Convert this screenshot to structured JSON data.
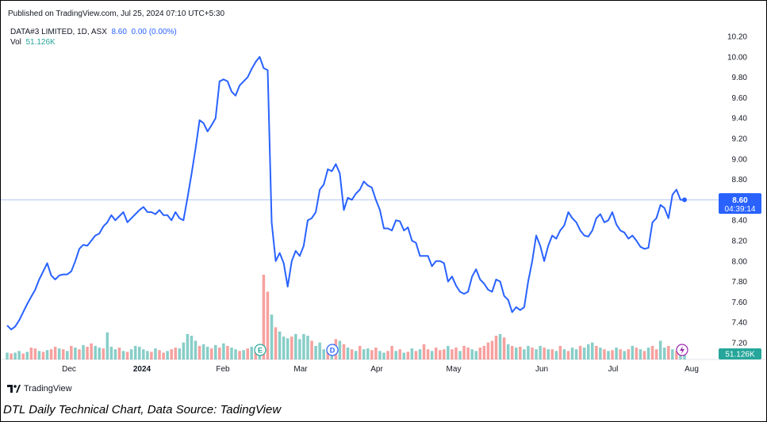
{
  "header": {
    "published": "Published on TradingView.com, Jul 25, 2024 07:10 UTC+5:30"
  },
  "legend": {
    "symbol": "DATA#3 LIMITED, 1D, ASX",
    "price": "8.60",
    "change": "0.00 (0.00%)",
    "vol_label": "Vol",
    "vol_value": "51.126K"
  },
  "price_label": {
    "price": "8.60",
    "countdown": "04:39:14"
  },
  "volume_label": "51.126K",
  "branding": "TradingView",
  "caption": "DTL Daily Technical Chart, Data Source: TadingView",
  "markers": {
    "earnings": "E",
    "dividend": "D"
  },
  "colors": {
    "line": "#2962ff",
    "vol_up": "#26a69a",
    "vol_down": "#ef5350",
    "price_line": "#b2c5f5"
  },
  "chart_data": {
    "type": "line",
    "series": [
      {
        "values": [
          7.37,
          7.33,
          7.36,
          7.42,
          7.5,
          7.58,
          7.65,
          7.72,
          7.82,
          7.9,
          7.98,
          7.86,
          7.82,
          7.86,
          7.87,
          7.87,
          7.9,
          8.0,
          8.12,
          8.16,
          8.15,
          8.2,
          8.25,
          8.27,
          8.34,
          8.38,
          8.45,
          8.4,
          8.44,
          8.48,
          8.38,
          8.42,
          8.46,
          8.5,
          8.53,
          8.48,
          8.48,
          8.46,
          8.5,
          8.45,
          8.45,
          8.4,
          8.48,
          8.42,
          8.4,
          8.62,
          8.85,
          9.1,
          9.38,
          9.35,
          9.27,
          9.33,
          9.4,
          9.76,
          9.78,
          9.76,
          9.66,
          9.62,
          9.72,
          9.76,
          9.8,
          9.88,
          9.95,
          10.0,
          9.89,
          9.87,
          8.38,
          8.0,
          8.08,
          7.98,
          7.75,
          8.0,
          8.1,
          8.05,
          8.15,
          8.4,
          8.42,
          8.48,
          8.7,
          8.75,
          8.9,
          8.88,
          8.95,
          8.86,
          8.5,
          8.62,
          8.6,
          8.66,
          8.7,
          8.78,
          8.74,
          8.72,
          8.6,
          8.5,
          8.32,
          8.32,
          8.3,
          8.4,
          8.39,
          8.3,
          8.33,
          8.2,
          8.18,
          8.05,
          8.05,
          8.05,
          7.95,
          8.0,
          8.0,
          7.98,
          7.8,
          7.85,
          7.76,
          7.7,
          7.68,
          7.7,
          7.85,
          7.92,
          7.82,
          7.78,
          7.72,
          7.7,
          7.82,
          7.8,
          7.66,
          7.62,
          7.5,
          7.55,
          7.52,
          7.55,
          7.8,
          8.0,
          8.25,
          8.15,
          8.0,
          8.15,
          8.25,
          8.22,
          8.3,
          8.35,
          8.48,
          8.42,
          8.38,
          8.3,
          8.25,
          8.24,
          8.3,
          8.42,
          8.46,
          8.38,
          8.4,
          8.48,
          8.36,
          8.3,
          8.28,
          8.22,
          8.25,
          8.2,
          8.14,
          8.12,
          8.13,
          8.38,
          8.42,
          8.55,
          8.52,
          8.42,
          8.65,
          8.7,
          8.6,
          8.6
        ]
      }
    ],
    "volume": [
      {
        "v": 8,
        "up": true
      },
      {
        "v": 7,
        "up": false
      },
      {
        "v": 8,
        "up": true
      },
      {
        "v": 10,
        "up": true
      },
      {
        "v": 7,
        "up": false
      },
      {
        "v": 9,
        "up": true
      },
      {
        "v": 14,
        "up": false
      },
      {
        "v": 13,
        "up": false
      },
      {
        "v": 10,
        "up": true
      },
      {
        "v": 9,
        "up": false
      },
      {
        "v": 11,
        "up": true
      },
      {
        "v": 12,
        "up": false
      },
      {
        "v": 15,
        "up": false
      },
      {
        "v": 13,
        "up": true
      },
      {
        "v": 12,
        "up": false
      },
      {
        "v": 10,
        "up": true
      },
      {
        "v": 16,
        "up": false
      },
      {
        "v": 14,
        "up": true
      },
      {
        "v": 12,
        "up": false
      },
      {
        "v": 17,
        "up": true
      },
      {
        "v": 15,
        "up": false
      },
      {
        "v": 19,
        "up": false
      },
      {
        "v": 16,
        "up": true
      },
      {
        "v": 14,
        "up": true
      },
      {
        "v": 13,
        "up": false
      },
      {
        "v": 32,
        "up": true
      },
      {
        "v": 15,
        "up": true
      },
      {
        "v": 12,
        "up": true
      },
      {
        "v": 14,
        "up": false
      },
      {
        "v": 10,
        "up": true
      },
      {
        "v": 9,
        "up": false
      },
      {
        "v": 12,
        "up": true
      },
      {
        "v": 16,
        "up": true
      },
      {
        "v": 15,
        "up": true
      },
      {
        "v": 12,
        "up": true
      },
      {
        "v": 10,
        "up": true
      },
      {
        "v": 9,
        "up": false
      },
      {
        "v": 13,
        "up": true
      },
      {
        "v": 11,
        "up": false
      },
      {
        "v": 8,
        "up": false
      },
      {
        "v": 10,
        "up": true
      },
      {
        "v": 12,
        "up": false
      },
      {
        "v": 14,
        "up": false
      },
      {
        "v": 13,
        "up": true
      },
      {
        "v": 20,
        "up": true
      },
      {
        "v": 30,
        "up": true
      },
      {
        "v": 28,
        "up": true
      },
      {
        "v": 22,
        "up": true
      },
      {
        "v": 16,
        "up": false
      },
      {
        "v": 18,
        "up": true
      },
      {
        "v": 15,
        "up": true
      },
      {
        "v": 13,
        "up": false
      },
      {
        "v": 17,
        "up": true
      },
      {
        "v": 14,
        "up": false
      },
      {
        "v": 19,
        "up": true
      },
      {
        "v": 16,
        "up": false
      },
      {
        "v": 14,
        "up": true
      },
      {
        "v": 12,
        "up": true
      },
      {
        "v": 10,
        "up": false
      },
      {
        "v": 11,
        "up": true
      },
      {
        "v": 13,
        "up": false
      },
      {
        "v": 15,
        "up": true
      },
      {
        "v": 12,
        "up": false
      },
      {
        "v": 14,
        "up": true
      },
      {
        "v": 100,
        "up": false
      },
      {
        "v": 80,
        "up": false
      },
      {
        "v": 53,
        "up": true
      },
      {
        "v": 38,
        "up": false
      },
      {
        "v": 33,
        "up": true
      },
      {
        "v": 27,
        "up": true
      },
      {
        "v": 25,
        "up": true
      },
      {
        "v": 27,
        "up": false
      },
      {
        "v": 30,
        "up": true
      },
      {
        "v": 24,
        "up": true
      },
      {
        "v": 30,
        "up": true
      },
      {
        "v": 28,
        "up": true
      },
      {
        "v": 22,
        "up": false
      },
      {
        "v": 16,
        "up": true
      },
      {
        "v": 20,
        "up": true
      },
      {
        "v": 12,
        "up": true
      },
      {
        "v": 10,
        "up": false
      },
      {
        "v": 12,
        "up": true
      },
      {
        "v": 24,
        "up": false
      },
      {
        "v": 22,
        "up": true
      },
      {
        "v": 18,
        "up": false
      },
      {
        "v": 14,
        "up": true
      },
      {
        "v": 12,
        "up": false
      },
      {
        "v": 10,
        "up": true
      },
      {
        "v": 16,
        "up": false
      },
      {
        "v": 12,
        "up": true
      },
      {
        "v": 13,
        "up": true
      },
      {
        "v": 11,
        "up": false
      },
      {
        "v": 14,
        "up": false
      },
      {
        "v": 10,
        "up": true
      },
      {
        "v": 8,
        "up": true
      },
      {
        "v": 10,
        "up": false
      },
      {
        "v": 16,
        "up": false
      },
      {
        "v": 10,
        "up": true
      },
      {
        "v": 12,
        "up": false
      },
      {
        "v": 8,
        "up": true
      },
      {
        "v": 9,
        "up": false
      },
      {
        "v": 13,
        "up": true
      },
      {
        "v": 10,
        "up": false
      },
      {
        "v": 12,
        "up": true
      },
      {
        "v": 18,
        "up": false
      },
      {
        "v": 12,
        "up": false
      },
      {
        "v": 10,
        "up": true
      },
      {
        "v": 14,
        "up": false
      },
      {
        "v": 11,
        "up": false
      },
      {
        "v": 12,
        "up": false
      },
      {
        "v": 16,
        "up": true
      },
      {
        "v": 12,
        "up": false
      },
      {
        "v": 14,
        "up": false
      },
      {
        "v": 10,
        "up": true
      },
      {
        "v": 16,
        "up": false
      },
      {
        "v": 14,
        "up": false
      },
      {
        "v": 12,
        "up": true
      },
      {
        "v": 10,
        "up": true
      },
      {
        "v": 14,
        "up": false
      },
      {
        "v": 16,
        "up": false
      },
      {
        "v": 20,
        "up": false
      },
      {
        "v": 22,
        "up": false
      },
      {
        "v": 28,
        "up": false
      },
      {
        "v": 30,
        "up": true
      },
      {
        "v": 26,
        "up": false
      },
      {
        "v": 18,
        "up": true
      },
      {
        "v": 16,
        "up": false
      },
      {
        "v": 14,
        "up": true
      },
      {
        "v": 15,
        "up": false
      },
      {
        "v": 12,
        "up": true
      },
      {
        "v": 16,
        "up": true
      },
      {
        "v": 14,
        "up": false
      },
      {
        "v": 12,
        "up": true
      },
      {
        "v": 16,
        "up": true
      },
      {
        "v": 14,
        "up": false
      },
      {
        "v": 12,
        "up": true
      },
      {
        "v": 12,
        "up": false
      },
      {
        "v": 10,
        "up": true
      },
      {
        "v": 16,
        "up": false
      },
      {
        "v": 12,
        "up": true
      },
      {
        "v": 10,
        "up": false
      },
      {
        "v": 14,
        "up": true
      },
      {
        "v": 12,
        "up": true
      },
      {
        "v": 16,
        "up": false
      },
      {
        "v": 14,
        "up": true
      },
      {
        "v": 18,
        "up": true
      },
      {
        "v": 20,
        "up": true
      },
      {
        "v": 16,
        "up": false
      },
      {
        "v": 14,
        "up": true
      },
      {
        "v": 12,
        "up": false
      },
      {
        "v": 10,
        "up": true
      },
      {
        "v": 11,
        "up": false
      },
      {
        "v": 14,
        "up": true
      },
      {
        "v": 12,
        "up": false
      },
      {
        "v": 10,
        "up": true
      },
      {
        "v": 12,
        "up": false
      },
      {
        "v": 16,
        "up": true
      },
      {
        "v": 14,
        "up": false
      },
      {
        "v": 12,
        "up": true
      },
      {
        "v": 10,
        "up": false
      },
      {
        "v": 14,
        "up": true
      },
      {
        "v": 16,
        "up": false
      },
      {
        "v": 12,
        "up": false
      },
      {
        "v": 22,
        "up": true
      },
      {
        "v": 14,
        "up": true
      },
      {
        "v": 16,
        "up": false
      },
      {
        "v": 12,
        "up": true
      },
      {
        "v": 10,
        "up": false
      },
      {
        "v": 12,
        "up": true
      },
      {
        "v": 14,
        "up": true
      }
    ],
    "yticks": [
      "10.20",
      "10.00",
      "9.80",
      "9.60",
      "9.40",
      "9.20",
      "9.00",
      "8.80",
      "8.60",
      "8.40",
      "8.20",
      "8.00",
      "7.80",
      "7.60",
      "7.40",
      "7.20"
    ],
    "ylim": [
      7.1,
      10.25
    ],
    "xticks": [
      "Dec",
      "2024",
      "Feb",
      "Mar",
      "Apr",
      "May",
      "Jun",
      "Jul",
      "Aug"
    ],
    "last_price": 8.6,
    "grid": false
  }
}
